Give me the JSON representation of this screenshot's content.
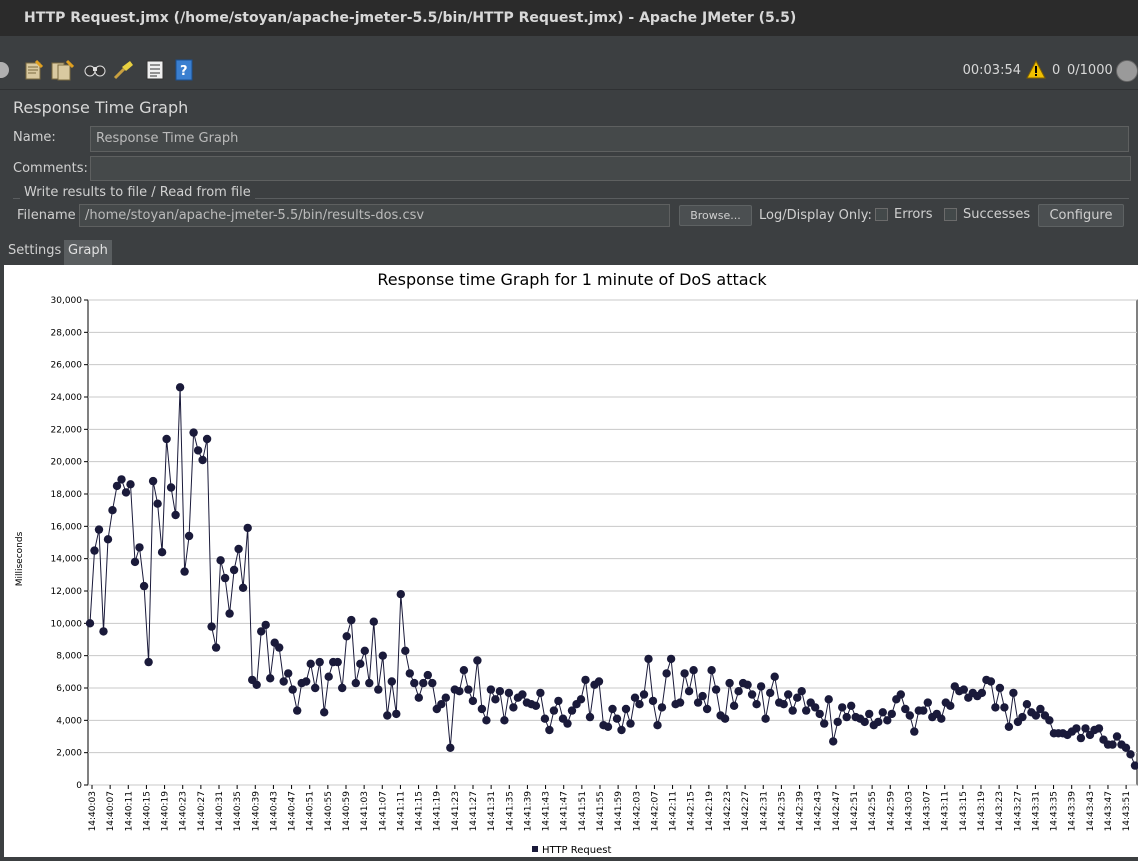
{
  "window": {
    "title": "HTTP Request.jmx (/home/stoyan/apache-jmeter-5.5/bin/HTTP Request.jmx) - Apache JMeter (5.5)"
  },
  "toolbar": {
    "icons": [
      "stop-icon",
      "clear-icon",
      "clear-all-icon",
      "search-icon",
      "reset-search-icon",
      "function-helper-icon",
      "help-icon"
    ],
    "elapsed_time": "00:03:54",
    "warning_count": "0",
    "active_threads": "0/1000"
  },
  "panel": {
    "title": "Response Time Graph",
    "name_label": "Name:",
    "name_value": "Response Time Graph",
    "comments_label": "Comments:",
    "comments_value": "",
    "group_title": "Write results to file / Read from file",
    "filename_label": "Filename",
    "filename_value": "/home/stoyan/apache-jmeter-5.5/bin/results-dos.csv",
    "browse_label": "Browse...",
    "log_display_label": "Log/Display Only:",
    "errors_label": "Errors",
    "successes_label": "Successes",
    "configure_label": "Configure",
    "tabs": [
      {
        "label": "Settings",
        "selected": false
      },
      {
        "label": "Graph",
        "selected": true
      }
    ]
  },
  "chart_data": {
    "type": "line",
    "title": "Response time Graph for 1 minute of DoS attack",
    "ylabel": "Milliseconds",
    "xlabel": "",
    "ylim": [
      0,
      30000
    ],
    "yticks": [
      0,
      2000,
      4000,
      6000,
      8000,
      10000,
      12000,
      14000,
      16000,
      18000,
      20000,
      22000,
      24000,
      26000,
      28000,
      30000
    ],
    "x_tick_labels": [
      "14:40:03",
      "14:40:07",
      "14:40:11",
      "14:40:15",
      "14:40:19",
      "14:40:23",
      "14:40:27",
      "14:40:31",
      "14:40:35",
      "14:40:39",
      "14:40:43",
      "14:40:47",
      "14:40:51",
      "14:40:55",
      "14:40:59",
      "14:41:03",
      "14:41:07",
      "14:41:11",
      "14:41:15",
      "14:41:19",
      "14:41:23",
      "14:41:27",
      "14:41:31",
      "14:41:35",
      "14:41:39",
      "14:41:43",
      "14:41:47",
      "14:41:51",
      "14:41:55",
      "14:41:59",
      "14:42:03",
      "14:42:07",
      "14:42:11",
      "14:42:15",
      "14:42:19",
      "14:42:23",
      "14:42:27",
      "14:42:31",
      "14:42:35",
      "14:42:39",
      "14:42:43",
      "14:42:47",
      "14:42:51",
      "14:42:55",
      "14:42:59",
      "14:43:03",
      "14:43:07",
      "14:43:11",
      "14:43:15",
      "14:43:19",
      "14:43:23",
      "14:43:27",
      "14:43:31",
      "14:43:35",
      "14:43:39",
      "14:43:43",
      "14:43:47",
      "14:43:51"
    ],
    "grid": true,
    "legend_position": "bottom",
    "series": [
      {
        "name": "HTTP Request",
        "color": "#1a1a3a",
        "values": [
          10000,
          14500,
          15800,
          9500,
          15200,
          17000,
          18500,
          18900,
          18100,
          18600,
          13800,
          14700,
          12300,
          7600,
          18800,
          17400,
          14400,
          21400,
          18400,
          16700,
          24600,
          13200,
          15400,
          21800,
          20700,
          20100,
          21400,
          9800,
          8500,
          13900,
          12800,
          10600,
          13300,
          14600,
          12200,
          15900,
          6500,
          6200,
          9500,
          9900,
          6600,
          8800,
          8500,
          6400,
          6900,
          5900,
          4600,
          6300,
          6400,
          7500,
          6000,
          7600,
          4500,
          6700,
          7600,
          7600,
          6000,
          9200,
          10200,
          6300,
          7500,
          8300,
          6300,
          10100,
          5900,
          8000,
          4300,
          6400,
          4400,
          11800,
          8300,
          6900,
          6300,
          5400,
          6300,
          6800,
          6300,
          4700,
          5000,
          5400,
          2300,
          5900,
          5800,
          7100,
          5900,
          5200,
          7700,
          4700,
          4000,
          5900,
          5300,
          5800,
          4000,
          5700,
          4800,
          5400,
          5600,
          5100,
          5000,
          4900,
          5700,
          4100,
          3400,
          4600,
          5200,
          4100,
          3800,
          4600,
          5000,
          5300,
          6500,
          4200,
          6200,
          6400,
          3700,
          3600,
          4700,
          4100,
          3400,
          4700,
          3800,
          5400,
          5000,
          5600,
          7800,
          5200,
          3700,
          4800,
          6900,
          7800,
          5000,
          5100,
          6900,
          5800,
          7100,
          5100,
          5500,
          4700,
          7100,
          5900,
          4300,
          4100,
          6300,
          4900,
          5800,
          6300,
          6200,
          5600,
          5000,
          6100,
          4100,
          5700,
          6700,
          5100,
          5000,
          5600,
          4600,
          5400,
          5800,
          4600,
          5100,
          4800,
          4400,
          3800,
          5300,
          2700,
          3900,
          4800,
          4200,
          4900,
          4200,
          4100,
          3900,
          4400,
          3700,
          3900,
          4500,
          4000,
          4400,
          5300,
          5600,
          4700,
          4300,
          3300,
          4600,
          4600,
          5100,
          4200,
          4400,
          4100,
          5100,
          4900,
          6100,
          5800,
          5900,
          5400,
          5700,
          5500,
          5700,
          6500,
          6400,
          4800,
          6000,
          4800,
          3600,
          5700,
          3900,
          4200,
          5000,
          4500,
          4300,
          4700,
          4300,
          4000,
          3200,
          3200,
          3200,
          3100,
          3300,
          3500,
          2900,
          3500,
          3100,
          3400,
          3500,
          2800,
          2500,
          2500,
          3000,
          2500,
          2300,
          1900,
          1200
        ]
      }
    ]
  }
}
